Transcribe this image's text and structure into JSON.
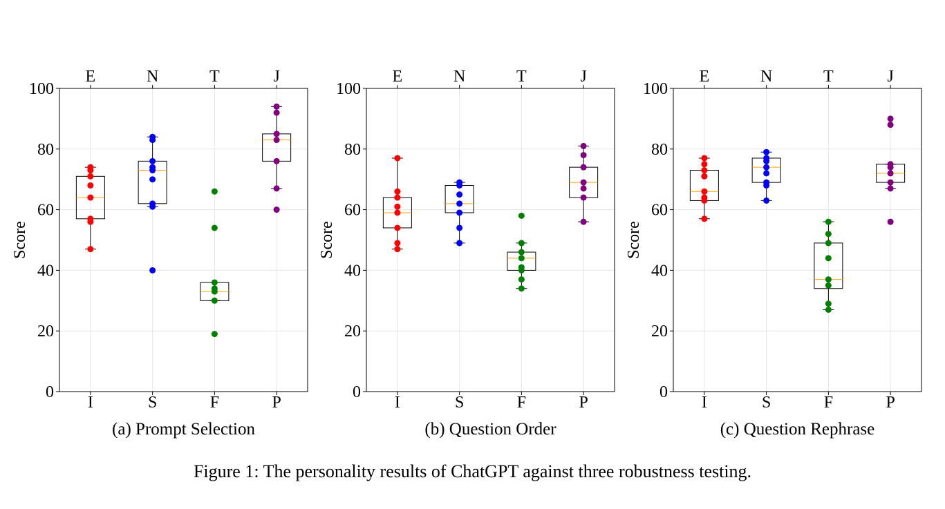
{
  "figure_caption": "Figure 1: The personality results of ChatGPT against three robustness testing.",
  "colors": {
    "E_I": "#ff0000",
    "N_S": "#0000ff",
    "T_F": "#008000",
    "J_P": "#800080",
    "median": "#ffa500",
    "box": "#000000",
    "grid": "#e5e5e5"
  },
  "chart_data": [
    {
      "type": "box",
      "caption": "(a) Prompt Selection",
      "ylabel": "Score",
      "ylim": [
        0,
        100
      ],
      "yticks": [
        0,
        20,
        40,
        60,
        80,
        100
      ],
      "categories_top": [
        "E",
        "N",
        "T",
        "J"
      ],
      "categories_bottom": [
        "I",
        "S",
        "F",
        "P"
      ],
      "grid": true,
      "series": [
        {
          "points": [
            74,
            73,
            71,
            68,
            64,
            57,
            56,
            47
          ],
          "stats": {
            "min": 47,
            "q1": 57,
            "median": 64,
            "q3": 71,
            "max": 74
          }
        },
        {
          "points": [
            84,
            83,
            76,
            74,
            73,
            70,
            62,
            61,
            40
          ],
          "stats": {
            "min": 61,
            "q1": 62,
            "median": 73,
            "q3": 76,
            "max": 84
          }
        },
        {
          "points": [
            66,
            54,
            36,
            34,
            33,
            30,
            19
          ],
          "stats": {
            "min": 30,
            "q1": 30,
            "median": 33,
            "q3": 36,
            "max": 36
          }
        },
        {
          "points": [
            94,
            92,
            85,
            83,
            76,
            67,
            60
          ],
          "stats": {
            "min": 67,
            "q1": 76,
            "median": 83,
            "q3": 85,
            "max": 94
          }
        }
      ]
    },
    {
      "type": "box",
      "caption": "(b) Question Order",
      "ylabel": "Score",
      "ylim": [
        0,
        100
      ],
      "yticks": [
        0,
        20,
        40,
        60,
        80,
        100
      ],
      "categories_top": [
        "E",
        "N",
        "T",
        "J"
      ],
      "categories_bottom": [
        "I",
        "S",
        "F",
        "P"
      ],
      "grid": true,
      "series": [
        {
          "points": [
            77,
            66,
            64,
            61,
            59,
            54,
            49,
            47
          ],
          "stats": {
            "min": 47,
            "q1": 54,
            "median": 59,
            "q3": 64,
            "max": 77
          }
        },
        {
          "points": [
            69,
            68,
            65,
            62,
            59,
            54,
            49
          ],
          "stats": {
            "min": 49,
            "q1": 59,
            "median": 62,
            "q3": 68,
            "max": 69
          }
        },
        {
          "points": [
            58,
            49,
            46,
            44,
            41,
            40,
            37,
            34
          ],
          "stats": {
            "min": 34,
            "q1": 40,
            "median": 44,
            "q3": 46,
            "max": 49
          }
        },
        {
          "points": [
            81,
            78,
            74,
            69,
            67,
            64,
            56
          ],
          "stats": {
            "min": 56,
            "q1": 64,
            "median": 69,
            "q3": 74,
            "max": 81
          }
        }
      ]
    },
    {
      "type": "box",
      "caption": "(c) Question Rephrase",
      "ylabel": "Score",
      "ylim": [
        0,
        100
      ],
      "yticks": [
        0,
        20,
        40,
        60,
        80,
        100
      ],
      "categories_top": [
        "E",
        "N",
        "T",
        "J"
      ],
      "categories_bottom": [
        "I",
        "S",
        "F",
        "P"
      ],
      "grid": true,
      "series": [
        {
          "points": [
            77,
            75,
            73,
            71,
            66,
            64,
            63,
            57
          ],
          "stats": {
            "min": 57,
            "q1": 63,
            "median": 66,
            "q3": 73,
            "max": 77
          }
        },
        {
          "points": [
            79,
            77,
            76,
            74,
            72,
            69,
            68,
            63
          ],
          "stats": {
            "min": 63,
            "q1": 69,
            "median": 74,
            "q3": 77,
            "max": 79
          }
        },
        {
          "points": [
            56,
            52,
            49,
            44,
            37,
            35,
            29,
            27
          ],
          "stats": {
            "min": 27,
            "q1": 34,
            "median": 37,
            "q3": 49,
            "max": 56
          }
        },
        {
          "points": [
            90,
            88,
            75,
            74,
            72,
            69,
            67,
            56
          ],
          "stats": {
            "min": 67,
            "q1": 69,
            "median": 72,
            "q3": 75,
            "max": 75
          }
        }
      ]
    }
  ]
}
